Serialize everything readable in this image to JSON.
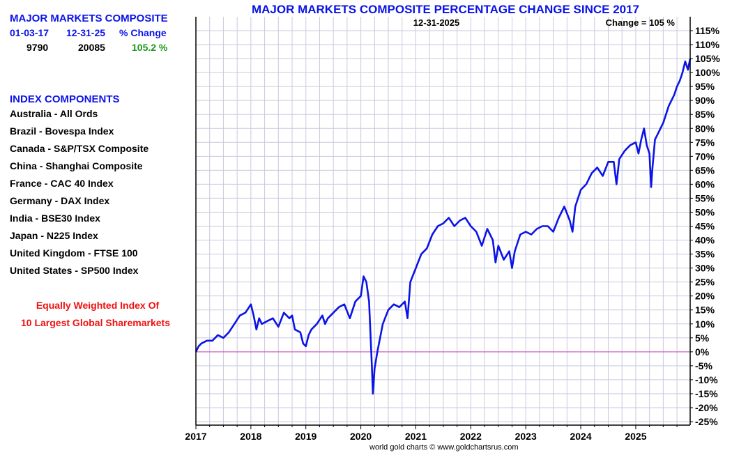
{
  "sidebar": {
    "summary_title": "MAJOR MARKETS COMPOSITE",
    "col_start_date": "01-03-17",
    "col_end_date": "12-31-25",
    "col_change": "% Change",
    "start_value": "9790",
    "end_value": "20085",
    "change_value": "105.2 %",
    "components_title": "INDEX COMPONENTS",
    "components": [
      "Australia - All Ords",
      "Brazil - Bovespa Index",
      "Canada - S&P/TSX Composite",
      "China - Shanghai Composite",
      "France - CAC 40 Index",
      "Germany - DAX Index",
      "India - BSE30 Index",
      "Japan - N225 Index",
      "United Kingdom - FTSE 100",
      "United States - SP500 Index"
    ],
    "note_line1": "Equally Weighted Index Of",
    "note_line2": "10 Largest Global Sharemarkets"
  },
  "colors": {
    "series": "#0b14e6",
    "zero_line": "#d040c0",
    "grid": "#c9c9e0",
    "title": "#0b14e6",
    "change_positive": "#1a9a1a",
    "note": "#f01010"
  },
  "chart_data": {
    "type": "line",
    "title": "MAJOR MARKETS COMPOSITE PERCENTAGE CHANGE SINCE 2017",
    "date_annotation": "12-31-2025",
    "change_annotation": "Change = 105 %",
    "xlabel": "",
    "ylabel": "",
    "xlim": [
      2017.0,
      2025.99
    ],
    "ylim": [
      -25,
      115
    ],
    "y_ticks": [
      -25,
      -20,
      -15,
      -10,
      -5,
      0,
      5,
      10,
      15,
      20,
      25,
      30,
      35,
      40,
      45,
      50,
      55,
      60,
      65,
      70,
      75,
      80,
      85,
      90,
      95,
      100,
      105,
      110,
      115
    ],
    "y_tick_labels": [
      "-25%",
      "-20%",
      "-15%",
      "-10%",
      "-5%",
      "0%",
      "5%",
      "10%",
      "15%",
      "20%",
      "25%",
      "30%",
      "35%",
      "40%",
      "45%",
      "50%",
      "55%",
      "60%",
      "65%",
      "70%",
      "75%",
      "80%",
      "85%",
      "90%",
      "95%",
      "100%",
      "105%",
      "110%",
      "115%"
    ],
    "x_ticks": [
      2017,
      2018,
      2019,
      2020,
      2021,
      2022,
      2023,
      2024,
      2025
    ],
    "x_tick_labels": [
      "2017",
      "2018",
      "2019",
      "2020",
      "2021",
      "2022",
      "2023",
      "2024",
      "2025"
    ],
    "grid": true,
    "reference_line": 0,
    "series": [
      {
        "name": "Major Markets Composite % change",
        "x": [
          2017.0,
          2017.05,
          2017.1,
          2017.2,
          2017.3,
          2017.4,
          2017.5,
          2017.6,
          2017.7,
          2017.8,
          2017.9,
          2018.0,
          2018.05,
          2018.1,
          2018.15,
          2018.2,
          2018.3,
          2018.4,
          2018.5,
          2018.6,
          2018.7,
          2018.75,
          2018.8,
          2018.9,
          2018.95,
          2019.0,
          2019.05,
          2019.1,
          2019.2,
          2019.3,
          2019.35,
          2019.4,
          2019.5,
          2019.6,
          2019.7,
          2019.8,
          2019.9,
          2020.0,
          2020.05,
          2020.1,
          2020.15,
          2020.2,
          2020.22,
          2020.25,
          2020.3,
          2020.35,
          2020.4,
          2020.5,
          2020.6,
          2020.7,
          2020.8,
          2020.85,
          2020.9,
          2021.0,
          2021.1,
          2021.2,
          2021.3,
          2021.4,
          2021.5,
          2021.6,
          2021.7,
          2021.8,
          2021.9,
          2022.0,
          2022.1,
          2022.2,
          2022.3,
          2022.4,
          2022.45,
          2022.5,
          2022.6,
          2022.7,
          2022.75,
          2022.8,
          2022.9,
          2023.0,
          2023.1,
          2023.2,
          2023.3,
          2023.4,
          2023.5,
          2023.6,
          2023.7,
          2023.8,
          2023.85,
          2023.9,
          2024.0,
          2024.1,
          2024.2,
          2024.3,
          2024.4,
          2024.5,
          2024.6,
          2024.65,
          2024.7,
          2024.8,
          2024.9,
          2025.0,
          2025.05,
          2025.1,
          2025.15,
          2025.2,
          2025.25,
          2025.28,
          2025.3,
          2025.35,
          2025.4,
          2025.5,
          2025.6,
          2025.7,
          2025.75,
          2025.8,
          2025.85,
          2025.9,
          2025.95,
          2025.99
        ],
        "values": [
          0,
          2,
          3,
          4,
          4,
          6,
          5,
          7,
          10,
          13,
          14,
          17,
          13,
          8,
          12,
          10,
          11,
          12,
          9,
          14,
          12,
          13,
          8,
          7,
          3,
          2,
          6,
          8,
          10,
          13,
          10,
          12,
          14,
          16,
          17,
          12,
          18,
          20,
          27,
          25,
          18,
          -5,
          -15,
          -6,
          0,
          5,
          10,
          15,
          17,
          16,
          18,
          12,
          25,
          30,
          35,
          37,
          42,
          45,
          46,
          48,
          45,
          47,
          48,
          45,
          43,
          38,
          44,
          40,
          32,
          38,
          33,
          36,
          30,
          36,
          42,
          43,
          42,
          44,
          45,
          45,
          43,
          48,
          52,
          47,
          43,
          52,
          58,
          60,
          64,
          66,
          63,
          68,
          68,
          60,
          69,
          72,
          74,
          75,
          71,
          76,
          80,
          74,
          71,
          59,
          65,
          76,
          78,
          82,
          88,
          92,
          95,
          97,
          100,
          104,
          101,
          105
        ]
      }
    ]
  },
  "credit": "world gold charts © www.goldchartsrus.com"
}
